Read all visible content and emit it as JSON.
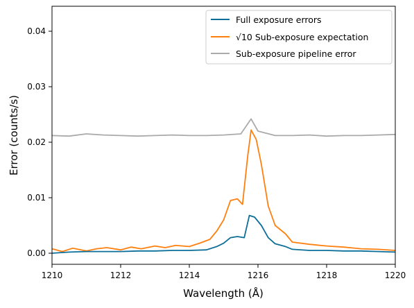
{
  "chart_data": {
    "type": "line",
    "xlabel": "Wavelength (Å)",
    "ylabel": "Error (counts/s)",
    "xlim": [
      1210,
      1220
    ],
    "ylim": [
      -0.002,
      0.0445
    ],
    "x_ticks": [
      1210,
      1212,
      1214,
      1216,
      1218,
      1220
    ],
    "x_tick_labels": [
      "1210",
      "1212",
      "1214",
      "1216",
      "1218",
      "1220"
    ],
    "y_ticks": [
      0.0,
      0.01,
      0.02,
      0.03,
      0.04
    ],
    "y_tick_labels": [
      "0.00",
      "0.01",
      "0.02",
      "0.03",
      "0.04"
    ],
    "legend_position": "top-right",
    "grid": false,
    "series": [
      {
        "name": "Full exposure errors",
        "color": "#0b6e99",
        "points": [
          [
            1210,
            0.0
          ],
          [
            1210.5,
            0.0002
          ],
          [
            1211,
            0.0003
          ],
          [
            1211.5,
            0.0003
          ],
          [
            1212,
            0.0003
          ],
          [
            1212.5,
            0.0004
          ],
          [
            1213,
            0.0004
          ],
          [
            1213.5,
            0.0005
          ],
          [
            1214,
            0.0005
          ],
          [
            1214.5,
            0.0006
          ],
          [
            1214.8,
            0.0012
          ],
          [
            1215.0,
            0.0018
          ],
          [
            1215.2,
            0.0028
          ],
          [
            1215.4,
            0.003
          ],
          [
            1215.6,
            0.0028
          ],
          [
            1215.75,
            0.0068
          ],
          [
            1215.9,
            0.0065
          ],
          [
            1216.1,
            0.005
          ],
          [
            1216.3,
            0.0028
          ],
          [
            1216.5,
            0.0017
          ],
          [
            1216.8,
            0.0012
          ],
          [
            1217.0,
            0.0007
          ],
          [
            1217.5,
            0.0005
          ],
          [
            1218,
            0.0005
          ],
          [
            1218.5,
            0.0004
          ],
          [
            1219,
            0.0004
          ],
          [
            1219.5,
            0.0003
          ],
          [
            1220,
            0.0002
          ]
        ]
      },
      {
        "name": "√10 Sub-exposure expectation",
        "color": "#ff7f0e",
        "points": [
          [
            1210,
            0.0008
          ],
          [
            1210.3,
            0.0003
          ],
          [
            1210.6,
            0.0009
          ],
          [
            1211,
            0.0004
          ],
          [
            1211.3,
            0.0008
          ],
          [
            1211.6,
            0.001
          ],
          [
            1212,
            0.0006
          ],
          [
            1212.3,
            0.0011
          ],
          [
            1212.6,
            0.0008
          ],
          [
            1213,
            0.0013
          ],
          [
            1213.3,
            0.001
          ],
          [
            1213.6,
            0.0014
          ],
          [
            1214,
            0.0012
          ],
          [
            1214.3,
            0.0018
          ],
          [
            1214.6,
            0.0025
          ],
          [
            1214.8,
            0.004
          ],
          [
            1215.0,
            0.006
          ],
          [
            1215.2,
            0.0095
          ],
          [
            1215.4,
            0.0098
          ],
          [
            1215.55,
            0.0088
          ],
          [
            1215.7,
            0.0175
          ],
          [
            1215.8,
            0.0222
          ],
          [
            1215.95,
            0.0205
          ],
          [
            1216.1,
            0.016
          ],
          [
            1216.3,
            0.0085
          ],
          [
            1216.5,
            0.005
          ],
          [
            1216.8,
            0.0035
          ],
          [
            1217.0,
            0.002
          ],
          [
            1217.5,
            0.0016
          ],
          [
            1218,
            0.0013
          ],
          [
            1218.5,
            0.0011
          ],
          [
            1219,
            0.0008
          ],
          [
            1219.5,
            0.0007
          ],
          [
            1220,
            0.0005
          ]
        ]
      },
      {
        "name": "Sub-exposure pipeline error",
        "color": "#aaaaaa",
        "points": [
          [
            1210,
            0.0212
          ],
          [
            1210.5,
            0.0211
          ],
          [
            1211,
            0.0215
          ],
          [
            1211.5,
            0.0213
          ],
          [
            1212,
            0.0212
          ],
          [
            1212.5,
            0.0211
          ],
          [
            1213,
            0.0212
          ],
          [
            1213.5,
            0.0213
          ],
          [
            1214,
            0.0212
          ],
          [
            1214.5,
            0.0212
          ],
          [
            1215,
            0.0213
          ],
          [
            1215.5,
            0.0215
          ],
          [
            1215.8,
            0.0242
          ],
          [
            1216,
            0.022
          ],
          [
            1216.5,
            0.0212
          ],
          [
            1217,
            0.0212
          ],
          [
            1217.5,
            0.0213
          ],
          [
            1218,
            0.0211
          ],
          [
            1218.5,
            0.0212
          ],
          [
            1219,
            0.0212
          ],
          [
            1219.5,
            0.0213
          ],
          [
            1220,
            0.0214
          ]
        ]
      }
    ]
  }
}
